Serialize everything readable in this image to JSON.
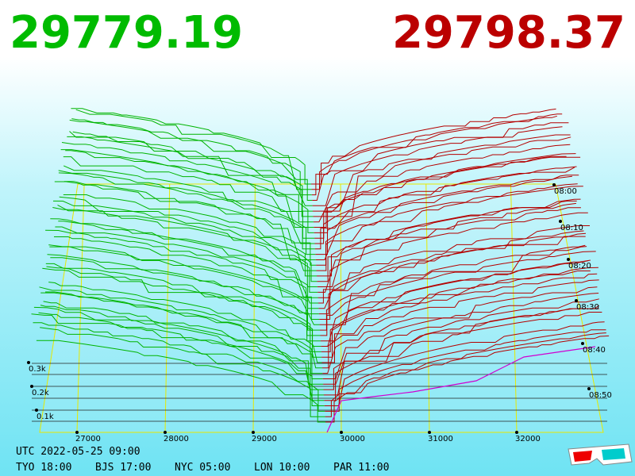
{
  "header": {
    "bid": "29779.19",
    "ask": "29798.37"
  },
  "price_axis": [
    "27000",
    "28000",
    "29000",
    "30000",
    "31000",
    "32000"
  ],
  "depth_axis": [
    "0.3k",
    "0.2k",
    "0.1k"
  ],
  "time_axis": [
    "08:00",
    "08:10",
    "08:20",
    "08:30",
    "08:40",
    "08:50"
  ],
  "footer": {
    "utc": "UTC 2022-05-25 09:00",
    "zones": [
      "TYO 18:00",
      "BJS 17:00",
      "NYC 05:00",
      "LON 10:00",
      "PAR 11:00"
    ]
  }
}
